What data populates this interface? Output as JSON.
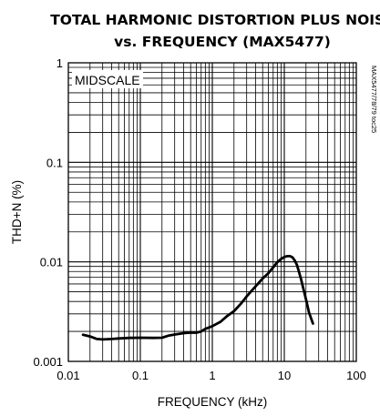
{
  "chart_data": {
    "type": "line",
    "title": "TOTAL HARMONIC DISTORTION PLUS NOISE",
    "subtitle": "vs. FREQUENCY (MAX5477)",
    "xlabel": "FREQUENCY (kHz)",
    "ylabel": "THD+N (%)",
    "xscale": "log",
    "yscale": "log",
    "xlim": [
      0.01,
      100
    ],
    "ylim": [
      0.001,
      1
    ],
    "grid": true,
    "x_tick_labels": [
      "0.01",
      "0.1",
      "1",
      "10",
      "100"
    ],
    "y_tick_labels": [
      "0.001",
      "0.01",
      "0.1",
      "1"
    ],
    "annotation": "MIDSCALE",
    "side_label": "MAX5477/78/79 toc25",
    "series": [
      {
        "color": "#000000",
        "x": [
          0.016,
          0.02,
          0.025,
          0.03,
          0.04,
          0.05,
          0.07,
          0.1,
          0.15,
          0.2,
          0.25,
          0.3,
          0.4,
          0.5,
          0.6,
          0.7,
          0.8,
          1.0,
          1.3,
          1.6,
          2.0,
          2.5,
          3.0,
          4.0,
          5.0,
          6.0,
          7.0,
          8.0,
          9.0,
          10.0,
          11.0,
          12.0,
          13.0,
          14.0,
          15.0,
          17.0,
          20.0,
          22.0,
          25.0
        ],
        "y": [
          0.00185,
          0.00178,
          0.00168,
          0.00166,
          0.00168,
          0.0017,
          0.00172,
          0.00173,
          0.00172,
          0.00173,
          0.00182,
          0.00186,
          0.00192,
          0.00195,
          0.00194,
          0.002,
          0.00212,
          0.00226,
          0.0025,
          0.00285,
          0.0032,
          0.0038,
          0.0045,
          0.0057,
          0.0068,
          0.0077,
          0.0088,
          0.0099,
          0.0107,
          0.0112,
          0.0114,
          0.0114,
          0.0111,
          0.0103,
          0.0093,
          0.0068,
          0.0042,
          0.0031,
          0.0024
        ]
      }
    ]
  }
}
